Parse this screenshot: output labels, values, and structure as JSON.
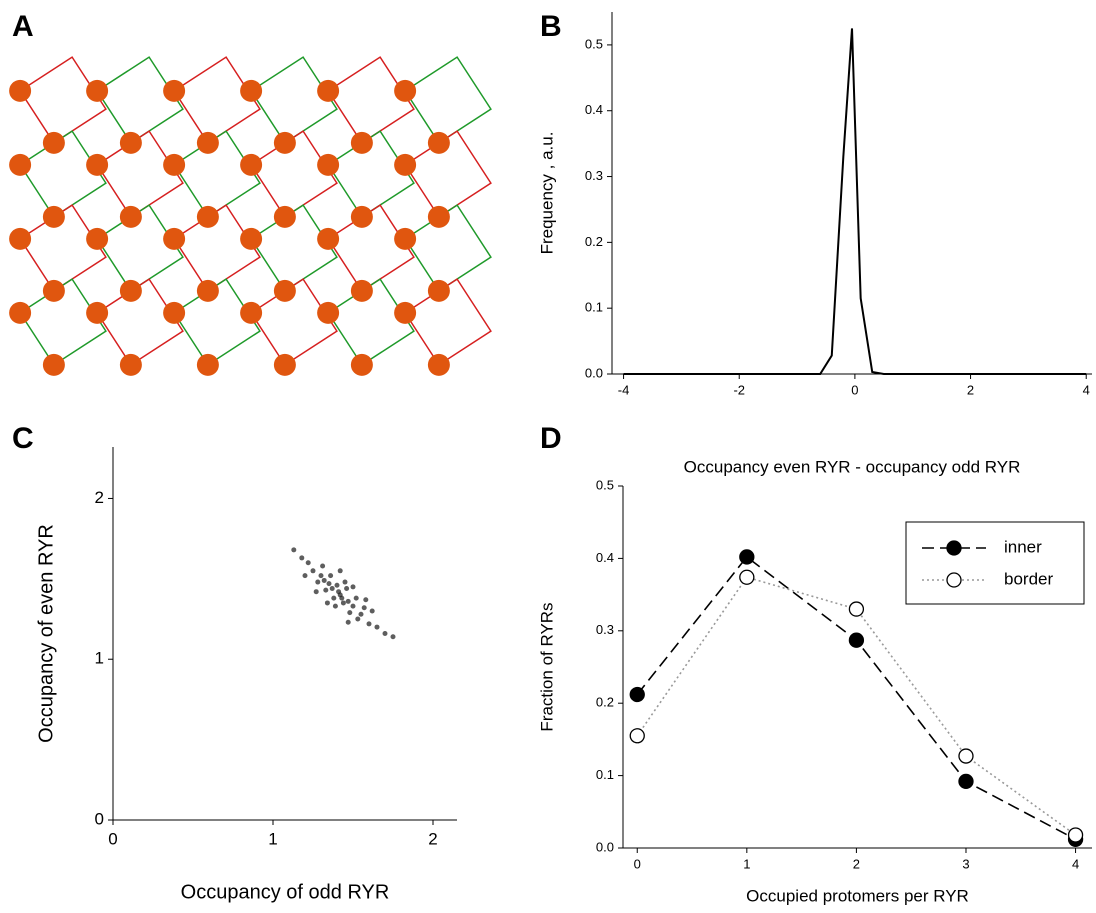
{
  "chart_data": [
    {
      "type": "diagram",
      "panel": "A"
    },
    {
      "type": "line",
      "panel": "B",
      "x": [
        -4,
        -0.6,
        -0.4,
        -0.2,
        -0.05,
        0.1,
        0.3,
        0.5,
        4
      ],
      "values": [
        0,
        0,
        0.028,
        0.33,
        0.525,
        0.115,
        0.003,
        0,
        0
      ],
      "color": "#000000",
      "xlabel": "Occupancy even RYR - occupancy odd RYR",
      "ylabel": "Frequency , a.u.",
      "xlim": [
        -4.2,
        4.1
      ],
      "ylim": [
        0,
        0.55
      ],
      "xticks": [
        -4,
        -2,
        0,
        2,
        4
      ],
      "yticks": [
        {
          "value": 0,
          "label": "0.0"
        },
        0.1,
        0.2,
        0.3,
        0.4,
        0.5
      ]
    },
    {
      "type": "scatter",
      "panel": "C",
      "x": [
        1.42,
        1.35,
        1.5,
        1.3,
        1.55,
        1.25,
        1.6,
        1.38,
        1.46,
        1.4,
        1.44,
        1.33,
        1.52,
        1.28,
        1.57,
        1.36,
        1.48,
        1.22,
        1.65,
        1.18,
        1.7,
        1.45,
        1.39,
        1.31,
        1.53,
        1.27,
        1.58,
        1.42,
        1.47,
        1.34,
        1.5,
        1.2,
        1.62,
        1.75,
        1.13,
        1.41,
        1.43,
        1.37,
        1.47,
        1.32
      ],
      "values": [
        1.4,
        1.47,
        1.33,
        1.52,
        1.28,
        1.55,
        1.22,
        1.38,
        1.44,
        1.46,
        1.35,
        1.43,
        1.38,
        1.48,
        1.32,
        1.52,
        1.29,
        1.6,
        1.2,
        1.63,
        1.16,
        1.48,
        1.33,
        1.58,
        1.25,
        1.42,
        1.37,
        1.55,
        1.23,
        1.35,
        1.45,
        1.52,
        1.3,
        1.14,
        1.68,
        1.42,
        1.38,
        1.44,
        1.36,
        1.49
      ],
      "color": "#1a1a1a",
      "xlabel": "Occupancy of odd RYR",
      "ylabel": "Occupancy of even RYR",
      "xlim": [
        0,
        2.15
      ],
      "ylim": [
        0,
        2.32
      ],
      "xticks": [
        0,
        1,
        2
      ],
      "yticks": [
        0,
        1,
        2
      ]
    },
    {
      "type": "line",
      "panel": "D",
      "x": [
        0,
        1,
        2,
        3,
        4
      ],
      "series": [
        {
          "name": "inner",
          "color": "#000000",
          "dash": "dashed",
          "filled": true,
          "values": [
            0.212,
            0.402,
            0.287,
            0.092,
            0.012
          ]
        },
        {
          "name": "border",
          "color": "#999999",
          "dash": "dotted",
          "filled": false,
          "values": [
            0.155,
            0.374,
            0.33,
            0.127,
            0.018
          ]
        }
      ],
      "xlabel": "Occupied protomers per RYR",
      "ylabel": "Fraction of RYRs",
      "xlim": [
        -0.13,
        4.15
      ],
      "ylim": [
        0,
        0.5
      ],
      "xticks": [
        0,
        1,
        2,
        3,
        4
      ],
      "yticks": [
        {
          "value": 0,
          "label": "0.0"
        },
        0.1,
        0.2,
        0.3,
        0.4,
        0.5
      ],
      "legend": "upper right"
    }
  ]
}
